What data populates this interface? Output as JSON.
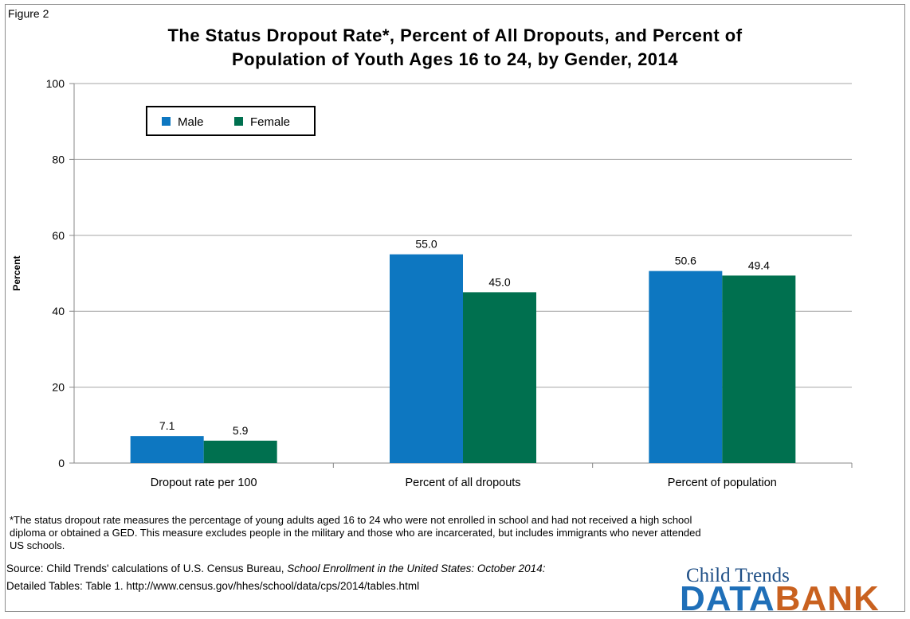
{
  "figure_label": "Figure 2",
  "title_line1": "The Status Dropout Rate*, Percent of All Dropouts, and Percent of",
  "title_line2": "Population of Youth Ages 16 to 24, by Gender, 2014",
  "colors": {
    "male": "#0d77c1",
    "female": "#00704f"
  },
  "chart_data": {
    "type": "bar",
    "categories": [
      "Dropout rate per 100",
      "Percent of all dropouts",
      "Percent of population"
    ],
    "series": [
      {
        "name": "Male",
        "values": [
          7.1,
          55.0,
          50.6
        ],
        "labels": [
          "7.1",
          "55.0",
          "50.6"
        ]
      },
      {
        "name": "Female",
        "values": [
          5.9,
          45.0,
          49.4
        ],
        "labels": [
          "5.9",
          "45.0",
          "49.4"
        ]
      }
    ],
    "xlabel": "",
    "ylabel": "Percent",
    "ylim": [
      0,
      100
    ],
    "yticks": [
      0,
      20,
      40,
      60,
      80,
      100
    ],
    "grid": true,
    "legend_position": "top-left"
  },
  "footnote": "*The status dropout rate measures the percentage of young adults aged 16 to 24 who were not enrolled in school and had not received a high school diploma or obtained a GED.  This measure excludes people in the military and those who are incarcerated, but includes immigrants who never attended US schools.",
  "source_prefix": "Source: Child Trends' calculations of U.S. Census Bureau, ",
  "source_italic": "School Enrollment in the United States: October 2014:",
  "source_line2": "Detailed Tables: Table 1. http://www.census.gov/hhes/school/data/cps/2014/tables.html",
  "logo_top": "Child Trends",
  "logo_part1": "DATA",
  "logo_part2": "BANK"
}
